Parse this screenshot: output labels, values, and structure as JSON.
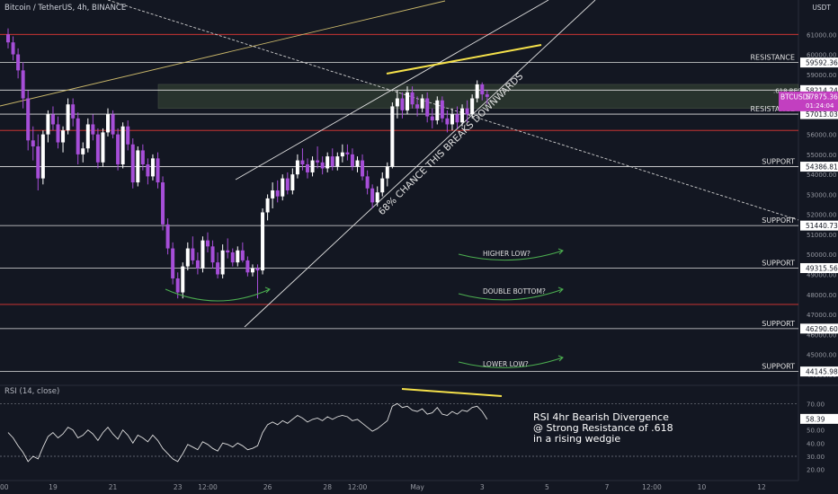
{
  "header": {
    "symbol": "Bitcoin / TetherUS, 4h, BINANCE",
    "currency": "USDT"
  },
  "rsi_header": "RSI (14, close)",
  "colors": {
    "bg": "#131722",
    "up": "#ffffff",
    "down": "#a64ed8",
    "red_line": "#e53935",
    "white_line": "#e0e0e0",
    "yellow": "#f5e14a",
    "green": "#4caf50",
    "highlight": "#3a4a36"
  },
  "chart_data": {
    "type": "candlestick",
    "title": "Bitcoin / TetherUS, 4h, BINANCE",
    "y_axis": {
      "min": 43500,
      "max": 62000,
      "ticks": [
        44000,
        45000,
        46000,
        47000,
        48000,
        49000,
        50000,
        51000,
        52000,
        53000,
        54000,
        55000,
        56000,
        57000,
        58000,
        59000,
        60000,
        61000
      ],
      "tick_labels": [
        "44000.00",
        "45000.00",
        "46000.00",
        "47000.00",
        "48000.00",
        "49000.00",
        "50000.00",
        "51000.00",
        "52000.00",
        "53000.00",
        "54000.00",
        "55000.00",
        "56000.00",
        "57000.00",
        "58000.00",
        "59000.00",
        "60000.00",
        "61000.00"
      ]
    },
    "x_axis": {
      "ticks": [
        {
          "label": ":00",
          "bar": -1
        },
        {
          "label": "19",
          "bar": 9
        },
        {
          "label": "21",
          "bar": 21
        },
        {
          "label": "23",
          "bar": 34
        },
        {
          "label": "12:00",
          "bar": 40
        },
        {
          "label": "26",
          "bar": 52
        },
        {
          "label": "28",
          "bar": 64
        },
        {
          "label": "12:00",
          "bar": 70
        },
        {
          "label": "May",
          "bar": 82
        },
        {
          "label": "3",
          "bar": 95
        },
        {
          "label": "5",
          "bar": 108
        },
        {
          "label": "7",
          "bar": 120
        },
        {
          "label": "12:00",
          "bar": 129
        },
        {
          "label": "10",
          "bar": 139
        },
        {
          "label": "12",
          "bar": 151
        }
      ]
    },
    "candles": [
      [
        61000,
        61300,
        60300,
        60600
      ],
      [
        60600,
        60900,
        59700,
        60000
      ],
      [
        60000,
        60300,
        58800,
        59200
      ],
      [
        59200,
        59600,
        57300,
        57800
      ],
      [
        57800,
        58200,
        55200,
        55700
      ],
      [
        55700,
        56400,
        54700,
        55400
      ],
      [
        55400,
        56000,
        53200,
        53800
      ],
      [
        53800,
        56200,
        53500,
        56000
      ],
      [
        56000,
        57200,
        55600,
        57000
      ],
      [
        57000,
        57400,
        56200,
        56500
      ],
      [
        56500,
        56900,
        55300,
        55600
      ],
      [
        55600,
        56400,
        55100,
        56200
      ],
      [
        56200,
        57800,
        56000,
        57500
      ],
      [
        57500,
        57800,
        56400,
        56800
      ],
      [
        56800,
        57100,
        54500,
        55000
      ],
      [
        55000,
        55600,
        54600,
        55300
      ],
      [
        55300,
        56800,
        55100,
        56500
      ],
      [
        56500,
        57000,
        55700,
        56000
      ],
      [
        56000,
        56300,
        54300,
        54600
      ],
      [
        54600,
        56300,
        54400,
        56100
      ],
      [
        56100,
        57300,
        55900,
        57000
      ],
      [
        57000,
        57200,
        55800,
        56000
      ],
      [
        56000,
        56300,
        54200,
        54500
      ],
      [
        54500,
        56600,
        54300,
        56400
      ],
      [
        56400,
        56700,
        55200,
        55500
      ],
      [
        55500,
        55800,
        53300,
        53600
      ],
      [
        53600,
        55400,
        53400,
        55200
      ],
      [
        55200,
        55500,
        54200,
        54500
      ],
      [
        54500,
        54800,
        53500,
        53900
      ],
      [
        53900,
        55000,
        53700,
        54800
      ],
      [
        54800,
        55100,
        53300,
        53600
      ],
      [
        53600,
        53900,
        51200,
        51500
      ],
      [
        51500,
        51800,
        50000,
        50300
      ],
      [
        50300,
        50600,
        48500,
        48800
      ],
      [
        48800,
        49100,
        47800,
        48100
      ],
      [
        48100,
        49600,
        47800,
        49400
      ],
      [
        49400,
        50600,
        49200,
        50300
      ],
      [
        50300,
        50900,
        49500,
        49700
      ],
      [
        49700,
        50100,
        49000,
        49300
      ],
      [
        49300,
        50900,
        49100,
        50700
      ],
      [
        50700,
        51100,
        50100,
        50400
      ],
      [
        50400,
        50700,
        49300,
        49600
      ],
      [
        49600,
        50100,
        48800,
        49000
      ],
      [
        49000,
        50500,
        48800,
        50200
      ],
      [
        50200,
        50800,
        49800,
        50100
      ],
      [
        50100,
        50300,
        49400,
        49600
      ],
      [
        49600,
        50400,
        49400,
        50200
      ],
      [
        50200,
        50600,
        49600,
        49700
      ],
      [
        49700,
        49900,
        48900,
        49100
      ],
      [
        49100,
        49500,
        48900,
        49300
      ],
      [
        49300,
        49500,
        47800,
        49200
      ],
      [
        49200,
        52300,
        49000,
        52100
      ],
      [
        52100,
        53000,
        51700,
        52800
      ],
      [
        52800,
        53600,
        52300,
        53200
      ],
      [
        53200,
        53700,
        52600,
        52900
      ],
      [
        52900,
        54000,
        52700,
        53800
      ],
      [
        53800,
        54100,
        53000,
        53200
      ],
      [
        53200,
        54300,
        53000,
        54000
      ],
      [
        54000,
        55000,
        53800,
        54700
      ],
      [
        54700,
        55300,
        54200,
        54500
      ],
      [
        54500,
        54800,
        53800,
        54100
      ],
      [
        54100,
        54900,
        53900,
        54700
      ],
      [
        54700,
        55400,
        54300,
        54600
      ],
      [
        54600,
        54900,
        54000,
        54300
      ],
      [
        54300,
        55100,
        54100,
        54900
      ],
      [
        54900,
        55300,
        54200,
        54400
      ],
      [
        54400,
        55100,
        54200,
        54900
      ],
      [
        54900,
        55500,
        54600,
        55100
      ],
      [
        55100,
        55500,
        54700,
        55000
      ],
      [
        55000,
        55300,
        54200,
        54400
      ],
      [
        54400,
        54900,
        54100,
        54700
      ],
      [
        54700,
        55000,
        53700,
        53900
      ],
      [
        53900,
        54200,
        53000,
        53300
      ],
      [
        53300,
        53500,
        52300,
        52600
      ],
      [
        52600,
        53400,
        52400,
        53100
      ],
      [
        53100,
        54100,
        52900,
        53800
      ],
      [
        53800,
        54600,
        53400,
        54400
      ],
      [
        54400,
        57600,
        54300,
        57400
      ],
      [
        57400,
        58200,
        56800,
        57800
      ],
      [
        57800,
        58100,
        56800,
        57200
      ],
      [
        57200,
        58400,
        57000,
        58100
      ],
      [
        58100,
        58400,
        57300,
        57500
      ],
      [
        57500,
        57900,
        56900,
        57300
      ],
      [
        57300,
        58000,
        57100,
        57800
      ],
      [
        57800,
        58100,
        56600,
        56900
      ],
      [
        56900,
        57300,
        56300,
        56700
      ],
      [
        56700,
        57900,
        56500,
        57700
      ],
      [
        57700,
        57900,
        56600,
        56800
      ],
      [
        56800,
        57200,
        56100,
        56500
      ],
      [
        56500,
        57300,
        56200,
        57000
      ],
      [
        57000,
        57400,
        56300,
        56600
      ],
      [
        56600,
        57500,
        56400,
        57300
      ],
      [
        57300,
        57700,
        56600,
        57000
      ],
      [
        57000,
        58000,
        56800,
        57800
      ],
      [
        57800,
        58700,
        57600,
        58500
      ],
      [
        58500,
        58600,
        57700,
        58000
      ],
      [
        58000,
        58200,
        57500,
        57875.36
      ]
    ],
    "horizontal_lines": [
      {
        "price": 61000,
        "color": "red"
      },
      {
        "price": 59592.36,
        "color": "white",
        "label": "RESISTANCE",
        "axis_label": "59592.36"
      },
      {
        "price": 58214.24,
        "color": "white",
        "axis_label": "58214.24",
        "tag": ".618 RES"
      },
      {
        "price": 57013.03,
        "color": "white",
        "label": "RESISTANCE",
        "axis_label": "57013.03"
      },
      {
        "price": 56200,
        "color": "red"
      },
      {
        "price": 54386.81,
        "color": "white",
        "label": "SUPPORT",
        "axis_label": "54386.81"
      },
      {
        "price": 51440.73,
        "color": "white",
        "label": "SUPPORT",
        "axis_label": "51440.73"
      },
      {
        "price": 49315.56,
        "color": "white",
        "label": "SUPPORT",
        "axis_label": "49315.56"
      },
      {
        "price": 47500,
        "color": "red"
      },
      {
        "price": 46290.6,
        "color": "white",
        "label": "SUPPORT",
        "axis_label": "46290.60"
      },
      {
        "price": 44145.98,
        "color": "white",
        "label": "SUPPORT",
        "axis_label": "44145.98"
      }
    ],
    "current_price": {
      "label": "BTCUSDT",
      "price": "57875.36",
      "countdown": "01:24:04"
    },
    "annotations": [
      {
        "text": "68% CHANCE THIS BREAKS DOWNWARDS"
      },
      {
        "text": "HIGHER LOW?"
      },
      {
        "text": "DOUBLE BOTTOM?"
      },
      {
        "text": "LOWER LOW?"
      }
    ],
    "rsi": {
      "y_ticks": [
        20,
        30,
        40,
        50,
        60,
        70
      ],
      "tick_labels": [
        "20.00",
        "30.00",
        "40.00",
        "50.00",
        "60.00",
        "70.00"
      ],
      "current": "58.39",
      "values": [
        48,
        44,
        38,
        33,
        26,
        30,
        28,
        37,
        45,
        48,
        44,
        47,
        52,
        50,
        44,
        46,
        50,
        47,
        42,
        48,
        52,
        47,
        43,
        50,
        46,
        40,
        46,
        44,
        41,
        46,
        42,
        36,
        32,
        28,
        26,
        32,
        39,
        37,
        35,
        41,
        39,
        36,
        34,
        40,
        39,
        37,
        40,
        38,
        35,
        36,
        38,
        48,
        54,
        56,
        54,
        57,
        55,
        58,
        61,
        59,
        56,
        58,
        59,
        57,
        60,
        58,
        60,
        61,
        60,
        57,
        58,
        55,
        52,
        49,
        51,
        54,
        57,
        68,
        70,
        67,
        68,
        65,
        64,
        66,
        62,
        63,
        67,
        62,
        61,
        64,
        62,
        65,
        64,
        67,
        68,
        64,
        58
      ],
      "note_lines": [
        "RSI 4hr Bearish Divergence",
        "@ Strong Resistance of .618",
        "in a rising wedgie"
      ]
    }
  }
}
